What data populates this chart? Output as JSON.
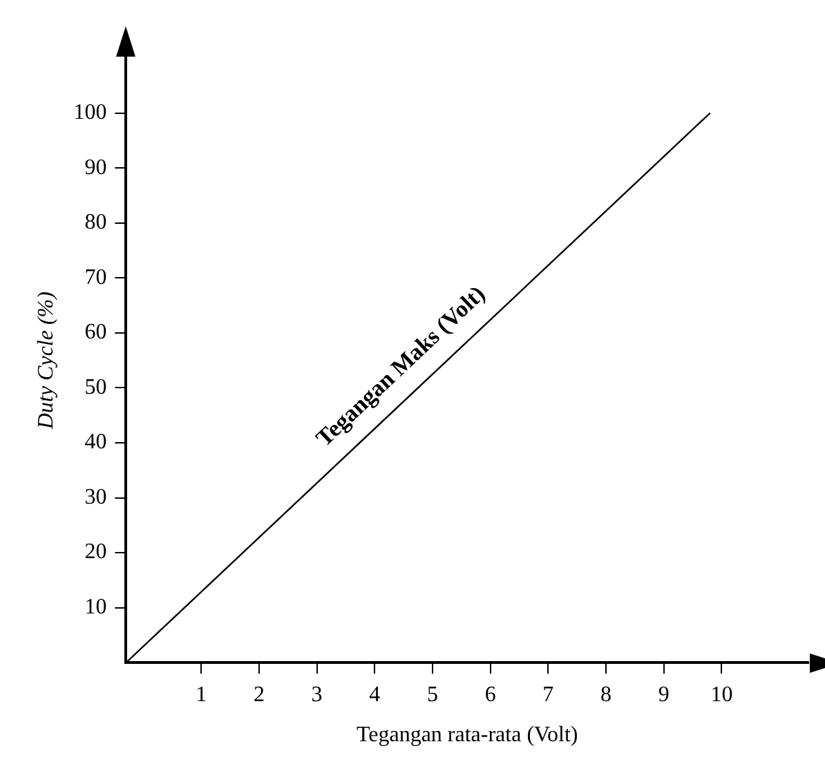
{
  "chart_data": {
    "type": "line",
    "xlabel": "Tegangan rata-rata (Volt)",
    "ylabel": "Duty Cycle (%)",
    "xlim": [
      -0.3,
      11.5
    ],
    "ylim": [
      0,
      110
    ],
    "xticks": [
      1,
      2,
      3,
      4,
      5,
      6,
      7,
      8,
      9,
      10
    ],
    "yticks": [
      10,
      20,
      30,
      40,
      50,
      60,
      70,
      80,
      90,
      100
    ],
    "grid": false,
    "legend": false,
    "marker": "none",
    "line_style": "solid",
    "series": [
      {
        "color": "#000000",
        "x": [
          -0.3,
          9.8
        ],
        "values": [
          0,
          100
        ]
      }
    ],
    "annotations": [
      {
        "text": "Tegangan Maks (Volt)",
        "x": 4.8,
        "y": 50
      }
    ]
  }
}
